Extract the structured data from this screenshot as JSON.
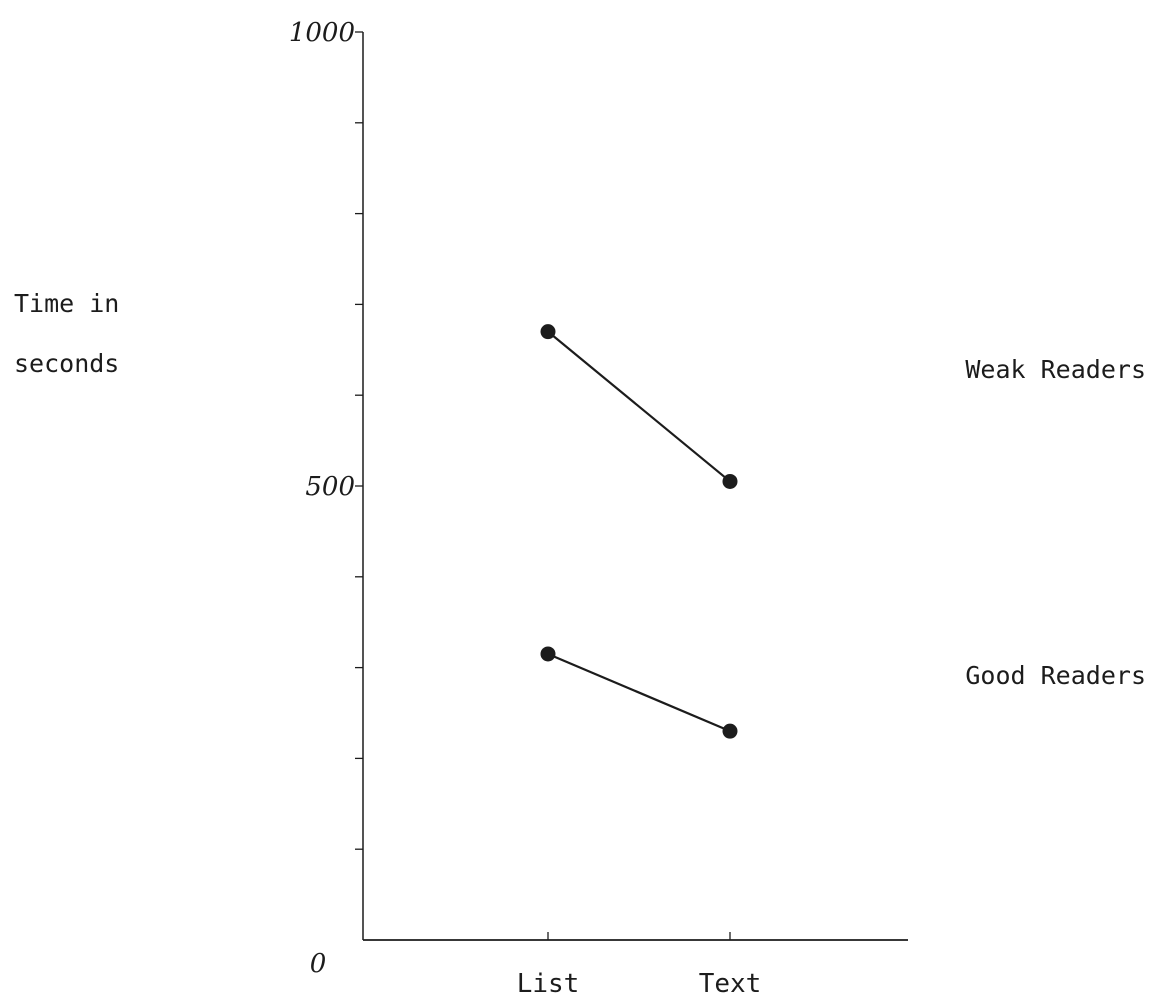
{
  "chart_data": {
    "type": "line",
    "ylabel_lines": [
      "Time in",
      "seconds"
    ],
    "categories": [
      "List",
      "Text"
    ],
    "ylim": [
      0,
      1000
    ],
    "yticks_labeled": [
      "0",
      "500",
      "1000"
    ],
    "yticks_minor_step": 100,
    "series": [
      {
        "name": "Weak Readers",
        "values": [
          670,
          505
        ]
      },
      {
        "name": "Good Readers",
        "values": [
          315,
          230
        ]
      }
    ],
    "grid": false,
    "legend": "direct labels at right",
    "colors": {
      "ink": "#1c1c1c"
    }
  }
}
